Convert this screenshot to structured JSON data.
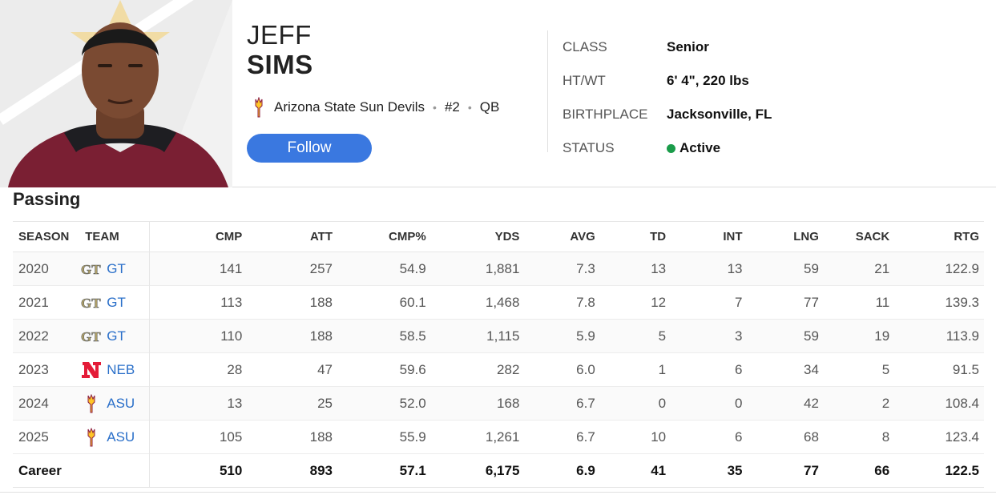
{
  "player": {
    "first_name": "JEFF",
    "last_name": "SIMS",
    "team": "Arizona State Sun Devils",
    "number": "#2",
    "position": "QB",
    "follow_label": "Follow"
  },
  "bio": [
    {
      "label": "CLASS",
      "value": "Senior"
    },
    {
      "label": "HT/WT",
      "value": "6' 4\", 220 lbs"
    },
    {
      "label": "BIRTHPLACE",
      "value": "Jacksonville, FL"
    },
    {
      "label": "STATUS",
      "value": "Active",
      "status_color": "#1a9c4a"
    }
  ],
  "passing": {
    "title": "Passing",
    "headers": [
      "SEASON",
      "TEAM",
      "CMP",
      "ATT",
      "CMP%",
      "YDS",
      "AVG",
      "TD",
      "INT",
      "LNG",
      "SACK",
      "RTG"
    ],
    "rows": [
      {
        "season": "2020",
        "team": "GT",
        "logo": "gt-logo-icon",
        "cmp": "141",
        "att": "257",
        "pct": "54.9",
        "yds": "1,881",
        "avg": "7.3",
        "td": "13",
        "int": "13",
        "lng": "59",
        "sack": "21",
        "rtg": "122.9"
      },
      {
        "season": "2021",
        "team": "GT",
        "logo": "gt-logo-icon",
        "cmp": "113",
        "att": "188",
        "pct": "60.1",
        "yds": "1,468",
        "avg": "7.8",
        "td": "12",
        "int": "7",
        "lng": "77",
        "sack": "11",
        "rtg": "139.3"
      },
      {
        "season": "2022",
        "team": "GT",
        "logo": "gt-logo-icon",
        "cmp": "110",
        "att": "188",
        "pct": "58.5",
        "yds": "1,115",
        "avg": "5.9",
        "td": "5",
        "int": "3",
        "lng": "59",
        "sack": "19",
        "rtg": "113.9"
      },
      {
        "season": "2023",
        "team": "NEB",
        "logo": "neb-logo-icon",
        "cmp": "28",
        "att": "47",
        "pct": "59.6",
        "yds": "282",
        "avg": "6.0",
        "td": "1",
        "int": "6",
        "lng": "34",
        "sack": "5",
        "rtg": "91.5"
      },
      {
        "season": "2024",
        "team": "ASU",
        "logo": "asu-logo-icon",
        "cmp": "13",
        "att": "25",
        "pct": "52.0",
        "yds": "168",
        "avg": "6.7",
        "td": "0",
        "int": "0",
        "lng": "42",
        "sack": "2",
        "rtg": "108.4"
      },
      {
        "season": "2025",
        "team": "ASU",
        "logo": "asu-logo-icon",
        "cmp": "105",
        "att": "188",
        "pct": "55.9",
        "yds": "1,261",
        "avg": "6.7",
        "td": "10",
        "int": "6",
        "lng": "68",
        "sack": "8",
        "rtg": "123.4"
      }
    ],
    "career": {
      "label": "Career",
      "cmp": "510",
      "att": "893",
      "pct": "57.1",
      "yds": "6,175",
      "avg": "6.9",
      "td": "41",
      "int": "35",
      "lng": "77",
      "sack": "66",
      "rtg": "122.5"
    }
  },
  "colors": {
    "accent": "#3a78e0",
    "link": "#2a6fc9",
    "gt_gold": "#b3a369",
    "neb_red": "#e41c38",
    "asu_gold": "#ffc627",
    "asu_maroon": "#8c1d40"
  }
}
